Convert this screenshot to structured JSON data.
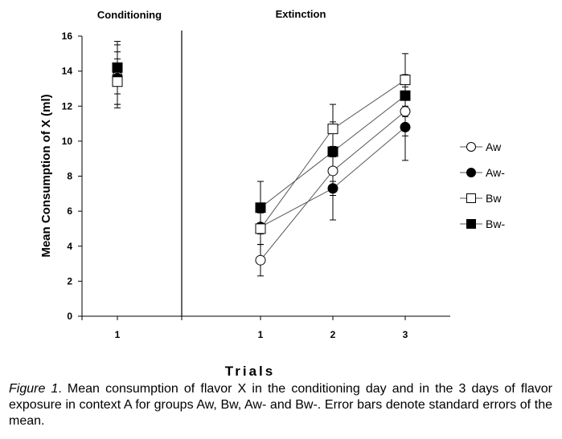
{
  "chart_data": {
    "type": "line",
    "panels": [
      {
        "title": "Conditioning",
        "x": [
          1
        ]
      },
      {
        "title": "Extinction",
        "x": [
          1,
          2,
          3
        ]
      }
    ],
    "xlabel": "Trials",
    "ylabel": "Mean Consumption of X (ml)",
    "ylim": [
      0,
      16
    ],
    "yticks": [
      0,
      2,
      4,
      6,
      8,
      10,
      12,
      14,
      16
    ],
    "xtick_labels": [
      "1",
      "1",
      "2",
      "3"
    ],
    "series": [
      {
        "name": "Aw",
        "marker": "circle-open",
        "conditioning": [
          13.7
        ],
        "conditioning_err": [
          1.8
        ],
        "extinction": [
          3.2,
          8.3,
          11.7
        ],
        "extinction_err": [
          0.9,
          1.4,
          1.4
        ]
      },
      {
        "name": "Aw-",
        "marker": "circle-filled",
        "conditioning": [
          13.6
        ],
        "conditioning_err": [
          1.5
        ],
        "extinction": [
          5.1,
          7.3,
          10.8
        ],
        "extinction_err": [
          1.0,
          1.8,
          1.9
        ]
      },
      {
        "name": "Bw",
        "marker": "square-open",
        "conditioning": [
          13.4
        ],
        "conditioning_err": [
          1.3
        ],
        "extinction": [
          5.0,
          10.7,
          13.5
        ],
        "extinction_err": [
          0.9,
          1.4,
          1.5
        ]
      },
      {
        "name": "Bw-",
        "marker": "square-filled",
        "conditioning": [
          14.2
        ],
        "conditioning_err": [
          1.5
        ],
        "extinction": [
          6.2,
          9.4,
          12.6
        ],
        "extinction_err": [
          1.5,
          1.7,
          1.2
        ]
      }
    ],
    "legend_position": "right"
  },
  "caption": {
    "label": "Figure 1",
    "text": ". Mean consumption of flavor X in the conditioning day and in the 3 days of flavor exposure in context A for groups Aw, Bw, Aw- and Bw-. Error bars denote standard errors of the mean."
  }
}
